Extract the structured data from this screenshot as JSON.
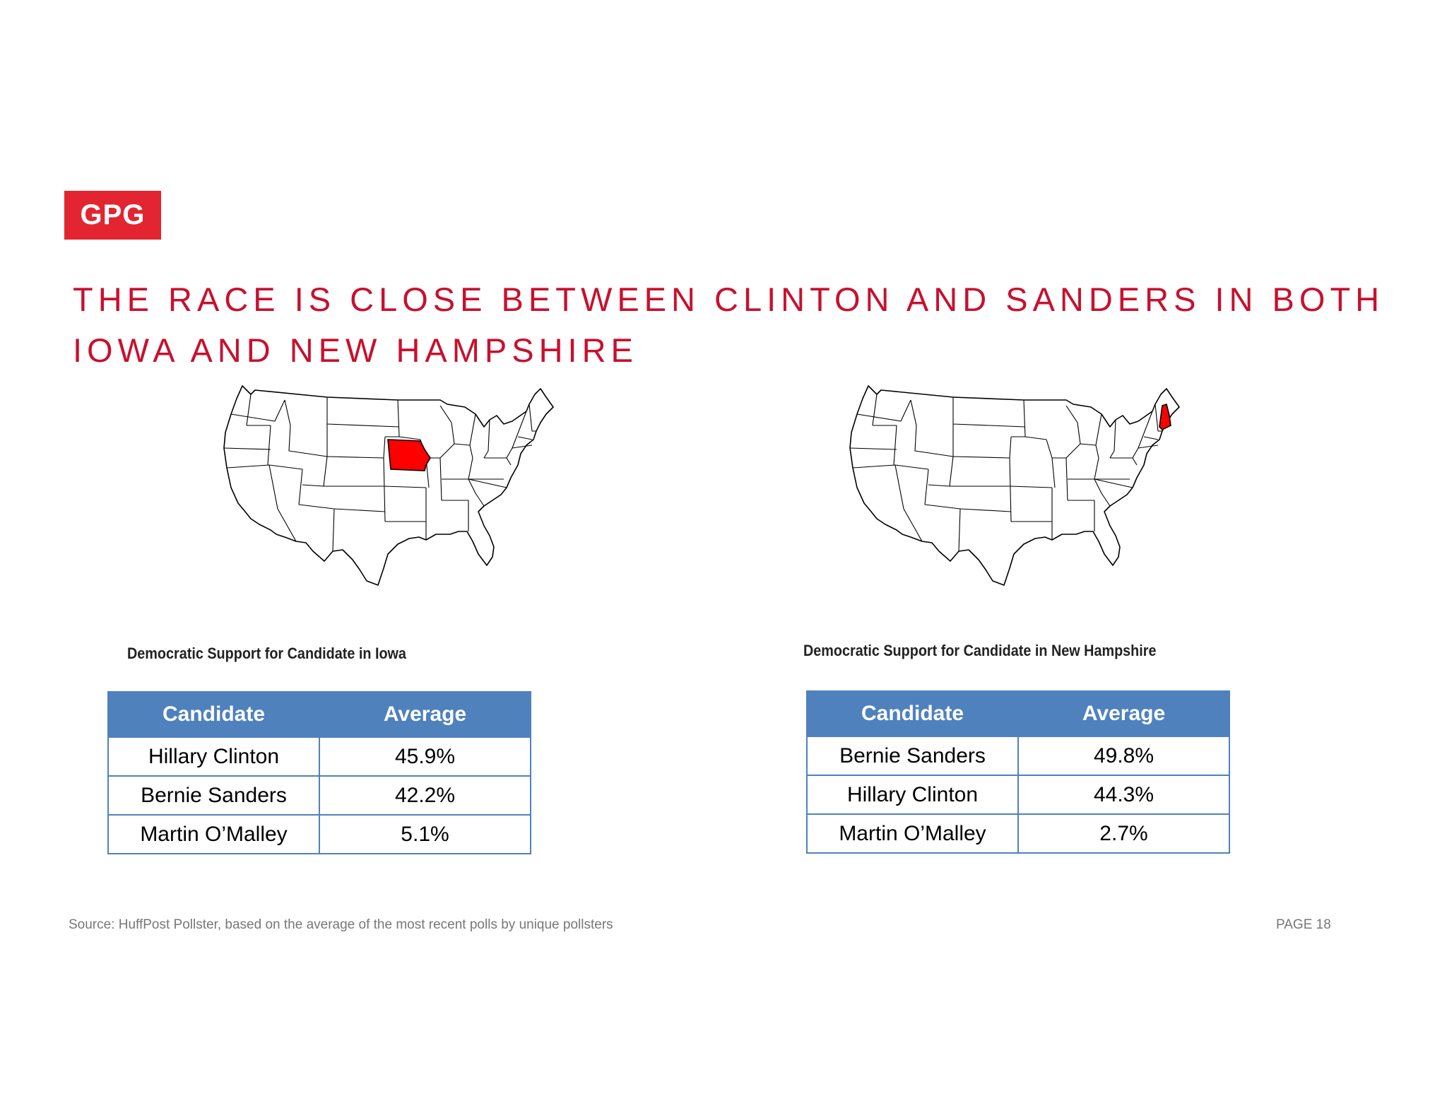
{
  "logo": {
    "text": "GPG",
    "color": "#e22530"
  },
  "title": "THE RACE IS CLOSE BETWEEN CLINTON AND SANDERS IN BOTH IOWA AND NEW HAMPSHIRE",
  "accent_color": "#c8102e",
  "table_header_color": "#4f81bd",
  "left_panel": {
    "highlighted_state": "Iowa",
    "caption": "Democratic Support for Candidate in Iowa",
    "columns": [
      "Candidate",
      "Average"
    ],
    "rows": [
      {
        "candidate": "Hillary Clinton",
        "average": "45.9%"
      },
      {
        "candidate": "Bernie Sanders",
        "average": "42.2%"
      },
      {
        "candidate": "Martin O’Malley",
        "average": "5.1%"
      }
    ]
  },
  "right_panel": {
    "highlighted_state": "New Hampshire",
    "caption": "Democratic Support for Candidate in New Hampshire",
    "columns": [
      "Candidate",
      "Average"
    ],
    "rows": [
      {
        "candidate": "Bernie Sanders",
        "average": "49.8%"
      },
      {
        "candidate": "Hillary Clinton",
        "average": "44.3%"
      },
      {
        "candidate": "Martin O’Malley",
        "average": "2.7%"
      }
    ]
  },
  "footer": {
    "source": "Source: HuffPost Pollster, based on the average of the most recent polls by unique pollsters",
    "page": "PAGE 18"
  }
}
